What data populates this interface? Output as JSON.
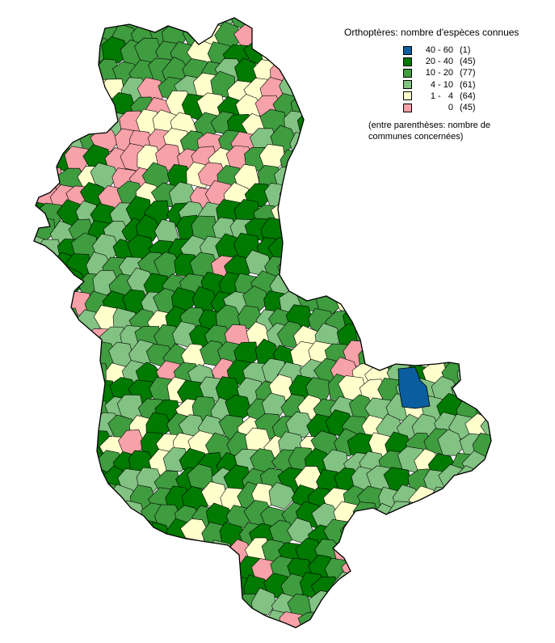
{
  "legend": {
    "title": "Orthoptères: nombre d'espèces connues",
    "classes": [
      {
        "range": "40 - 60",
        "count": "(1)",
        "color": "#0a5ea0",
        "key": "c40_60"
      },
      {
        "range": "20 - 40",
        "count": "(45)",
        "color": "#007a00",
        "key": "c20_40"
      },
      {
        "range": "10 - 20",
        "count": "(77)",
        "color": "#3f9c3f",
        "key": "c10_20"
      },
      {
        "range": "4 - 10",
        "count": "(61)",
        "color": "#82c282",
        "key": "c4_10"
      },
      {
        "range": "1 -   4",
        "count": "(64)",
        "color": "#ffffcc",
        "key": "c1_4"
      },
      {
        "range": "0",
        "count": "(45)",
        "color": "#f7a1a8",
        "key": "c0"
      }
    ],
    "note_line1": "(entre parenthèses: nombre de",
    "note_line2": "communes concernées)"
  },
  "map": {
    "outline_color": "#000000",
    "communes": [
      {
        "cls": "c20_40"
      },
      {
        "cls": "c40_60"
      },
      {
        "cls": "c10_20"
      },
      {
        "cls": "c4_10"
      },
      {
        "cls": "c0"
      },
      {
        "cls": "c1_4"
      }
    ]
  }
}
